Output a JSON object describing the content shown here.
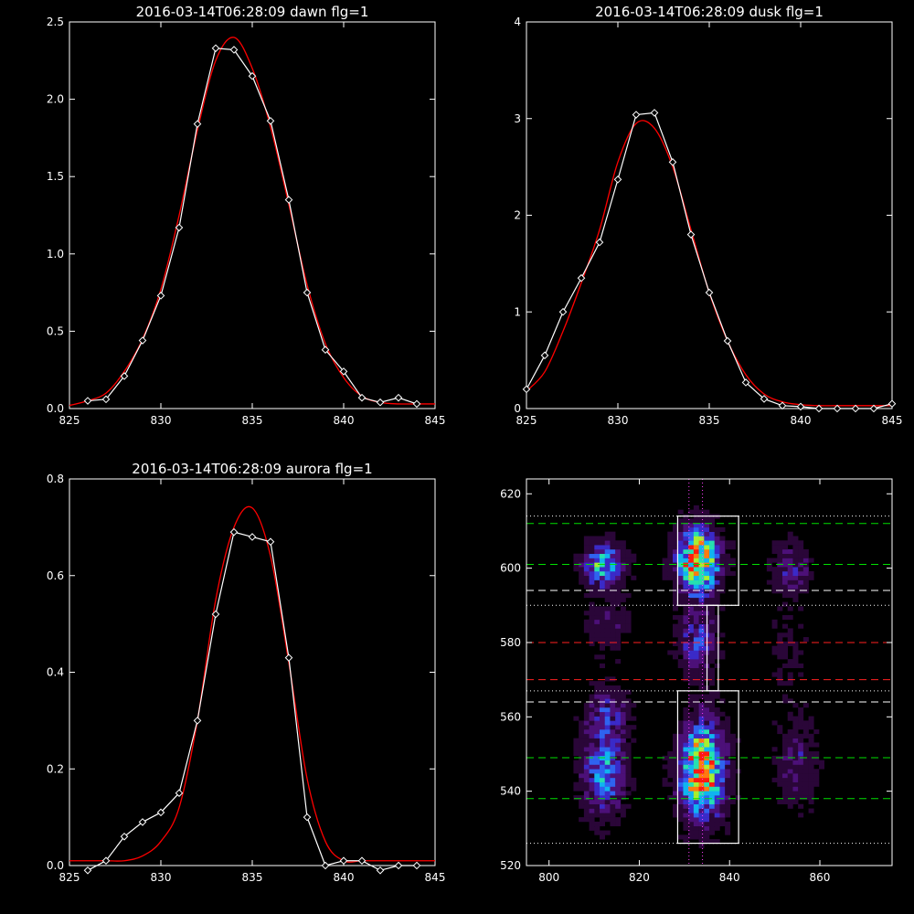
{
  "chart_data": [
    {
      "type": "line",
      "title": "2016-03-14T06:28:09 dawn flg=1",
      "xlim": [
        825,
        845
      ],
      "ylim": [
        0,
        2.5
      ],
      "xticks": [
        "825",
        "830",
        "835",
        "840",
        "845"
      ],
      "yticks": [
        "0.0",
        "0.5",
        "1.0",
        "1.5",
        "2.0",
        "2.5"
      ],
      "series": [
        {
          "style": "data",
          "color": "#ffffff",
          "markers": "diamond",
          "x": [
            826,
            827,
            828,
            829,
            830,
            831,
            832,
            833,
            834,
            835,
            836,
            837,
            838,
            839,
            840,
            841,
            842,
            843,
            844
          ],
          "y": [
            0.05,
            0.06,
            0.21,
            0.44,
            0.73,
            1.17,
            1.84,
            2.33,
            2.32,
            2.15,
            1.86,
            1.35,
            0.75,
            0.38,
            0.24,
            0.07,
            0.04,
            0.07,
            0.03
          ]
        },
        {
          "style": "fit",
          "color": "#ff0000",
          "markers": "none",
          "x": [
            825,
            826,
            827,
            828,
            829,
            830,
            831,
            832,
            833,
            834,
            835,
            836,
            837,
            838,
            839,
            840,
            841,
            842,
            843,
            844,
            845
          ],
          "y": [
            0.02,
            0.05,
            0.1,
            0.24,
            0.45,
            0.77,
            1.25,
            1.8,
            2.25,
            2.4,
            2.2,
            1.82,
            1.32,
            0.8,
            0.42,
            0.2,
            0.08,
            0.04,
            0.03,
            0.03,
            0.03
          ]
        }
      ]
    },
    {
      "type": "line",
      "title": "2016-03-14T06:28:09 dusk flg=1",
      "xlim": [
        825,
        845
      ],
      "ylim": [
        0,
        4
      ],
      "xticks": [
        "825",
        "830",
        "835",
        "840",
        "845"
      ],
      "yticks": [
        "0",
        "1",
        "2",
        "3",
        "4"
      ],
      "series": [
        {
          "style": "data",
          "color": "#ffffff",
          "markers": "diamond",
          "x": [
            825,
            826,
            827,
            828,
            829,
            830,
            831,
            832,
            833,
            834,
            835,
            836,
            837,
            838,
            839,
            840,
            841,
            842,
            843,
            844,
            845
          ],
          "y": [
            0.2,
            0.55,
            1.0,
            1.35,
            1.72,
            2.37,
            3.04,
            3.06,
            2.55,
            1.8,
            1.2,
            0.7,
            0.27,
            0.1,
            0.03,
            0.02,
            0.0,
            0.0,
            0.0,
            0.0,
            0.05
          ]
        },
        {
          "style": "fit",
          "color": "#ff0000",
          "markers": "none",
          "x": [
            825,
            826,
            827,
            828,
            829,
            830,
            831,
            832,
            833,
            834,
            835,
            836,
            837,
            838,
            839,
            840,
            841,
            842,
            843,
            844,
            845
          ],
          "y": [
            0.18,
            0.38,
            0.8,
            1.3,
            1.85,
            2.55,
            2.95,
            2.9,
            2.5,
            1.85,
            1.2,
            0.7,
            0.35,
            0.15,
            0.07,
            0.04,
            0.03,
            0.03,
            0.03,
            0.03,
            0.03
          ]
        }
      ]
    },
    {
      "type": "line",
      "title": "2016-03-14T06:28:09 aurora flg=1",
      "xlim": [
        825,
        845
      ],
      "ylim": [
        0,
        0.8
      ],
      "xticks": [
        "825",
        "830",
        "835",
        "840",
        "845"
      ],
      "yticks": [
        "0.0",
        "0.2",
        "0.4",
        "0.6",
        "0.8"
      ],
      "series": [
        {
          "style": "data",
          "color": "#ffffff",
          "markers": "diamond",
          "x": [
            826,
            827,
            828,
            829,
            830,
            831,
            832,
            833,
            834,
            835,
            836,
            837,
            838,
            839,
            840,
            841,
            842,
            843,
            844
          ],
          "y": [
            -0.01,
            0.01,
            0.06,
            0.09,
            0.11,
            0.15,
            0.3,
            0.52,
            0.69,
            0.68,
            0.67,
            0.43,
            0.1,
            0.0,
            0.01,
            0.01,
            -0.01,
            0.0,
            0.0
          ]
        },
        {
          "style": "fit",
          "color": "#ff0000",
          "markers": "none",
          "x": [
            825,
            826,
            827,
            828,
            829,
            830,
            831,
            832,
            833,
            834,
            835,
            836,
            837,
            838,
            839,
            840,
            841,
            842,
            843,
            844,
            845
          ],
          "y": [
            0.01,
            0.01,
            0.01,
            0.01,
            0.02,
            0.05,
            0.12,
            0.3,
            0.55,
            0.7,
            0.74,
            0.64,
            0.42,
            0.18,
            0.05,
            0.01,
            0.01,
            0.01,
            0.01,
            0.01,
            0.01
          ]
        }
      ]
    },
    {
      "type": "heatmap",
      "title": "",
      "xlim": [
        795,
        876
      ],
      "ylim": [
        520,
        624
      ],
      "xticks": [
        "800",
        "820",
        "840",
        "860"
      ],
      "yticks": [
        "520",
        "540",
        "560",
        "580",
        "600",
        "620"
      ],
      "colormap": [
        "#000000",
        "#2a0638",
        "#4c1078",
        "#3a2ac8",
        "#2f63f0",
        "#10b4f0",
        "#26e0b0",
        "#a8ee30",
        "#ff7a10",
        "#ff1a10"
      ],
      "blobs": [
        {
          "x": 812,
          "y": 601,
          "sx": 3.2,
          "sy": 4,
          "amp": 0.55
        },
        {
          "x": 813,
          "y": 585,
          "sx": 3.2,
          "sy": 6,
          "amp": 0.18
        },
        {
          "x": 812,
          "y": 545,
          "sx": 3.2,
          "sy": 8,
          "amp": 0.5
        },
        {
          "x": 813,
          "y": 561,
          "sx": 3.2,
          "sy": 5,
          "amp": 0.28
        },
        {
          "x": 833,
          "y": 602,
          "sx": 3.2,
          "sy": 6,
          "amp": 0.95
        },
        {
          "x": 833,
          "y": 580,
          "sx": 3.0,
          "sy": 6,
          "amp": 0.35
        },
        {
          "x": 834,
          "y": 546,
          "sx": 3.4,
          "sy": 9,
          "amp": 0.9
        },
        {
          "x": 854,
          "y": 600,
          "sx": 3.0,
          "sy": 5,
          "amp": 0.28
        },
        {
          "x": 855,
          "y": 548,
          "sx": 3.0,
          "sy": 8,
          "amp": 0.24
        },
        {
          "x": 853,
          "y": 578,
          "sx": 3.0,
          "sy": 8,
          "amp": 0.1
        }
      ],
      "boxes": [
        {
          "x0": 828.5,
          "x1": 842,
          "y0": 590,
          "y1": 614
        },
        {
          "x0": 828.5,
          "x1": 842,
          "y0": 526,
          "y1": 567
        },
        {
          "x0": 835,
          "x1": 837.5,
          "y0": 567,
          "y1": 590
        }
      ],
      "hlines": [
        {
          "y": 612,
          "color": "#00e000",
          "style": "dash"
        },
        {
          "y": 601,
          "color": "#00e000",
          "style": "dash"
        },
        {
          "y": 549,
          "color": "#00e000",
          "style": "dash"
        },
        {
          "y": 538,
          "color": "#00e000",
          "style": "dash"
        },
        {
          "y": 594,
          "color": "#ffffff",
          "style": "dash"
        },
        {
          "y": 564,
          "color": "#ffffff",
          "style": "dash"
        },
        {
          "y": 580,
          "color": "#ff2020",
          "style": "dash"
        },
        {
          "y": 570,
          "color": "#ff2020",
          "style": "dash"
        },
        {
          "y": 614,
          "color": "#ffffff",
          "style": "dot"
        },
        {
          "y": 590,
          "color": "#ffffff",
          "style": "dot"
        },
        {
          "y": 567,
          "color": "#ffffff",
          "style": "dot"
        },
        {
          "y": 526,
          "color": "#ffffff",
          "style": "dot"
        }
      ],
      "vlines": [
        {
          "x": 831,
          "color": "#ff40ff",
          "style": "dot"
        },
        {
          "x": 834,
          "color": "#ff40ff",
          "style": "dot"
        }
      ]
    }
  ]
}
